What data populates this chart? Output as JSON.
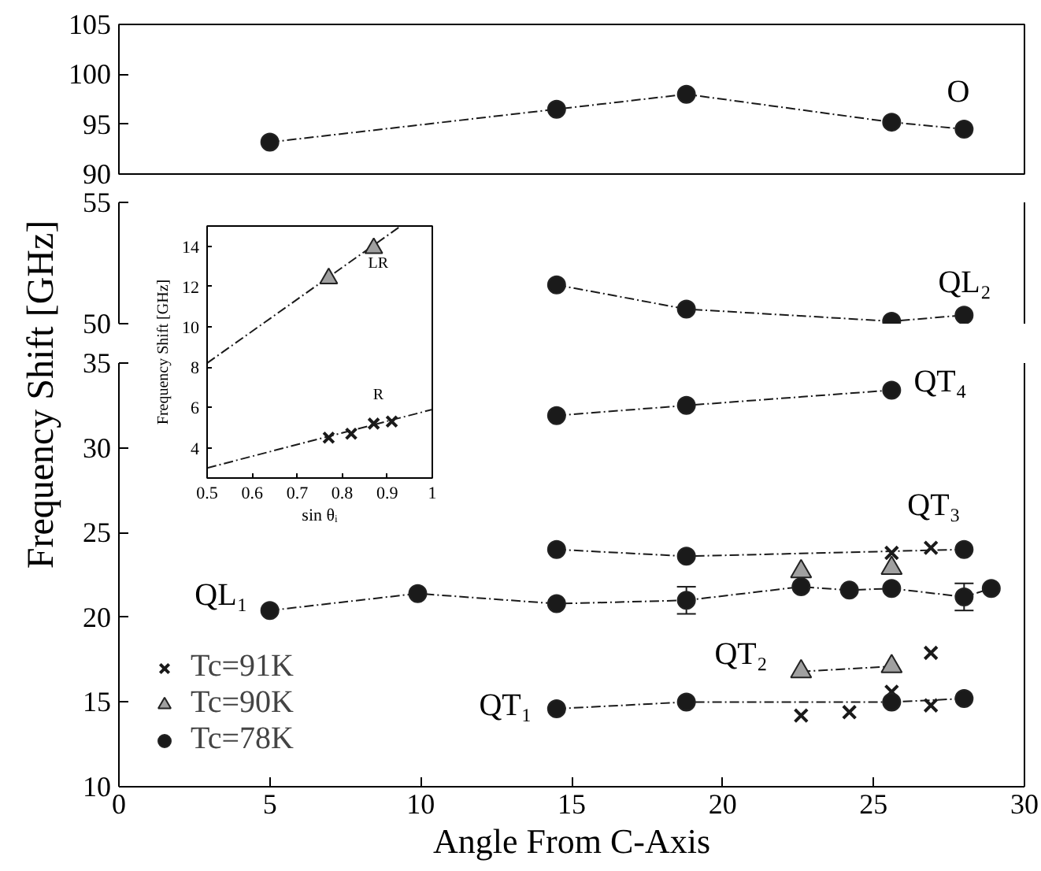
{
  "chart_data": [
    {
      "type": "line",
      "xlim": [
        0,
        30
      ],
      "ylim": [
        90,
        105
      ],
      "yticks": [
        90,
        95,
        100,
        105
      ],
      "tick_labels": "y",
      "series": [
        {
          "marker": "circle",
          "line_style": "dashed",
          "color": "#1a1a1a",
          "x": [
            5,
            14.5,
            18.8,
            25.6,
            28
          ],
          "values": [
            93.2,
            96.5,
            98.0,
            95.2,
            94.5
          ]
        }
      ],
      "annotations": [
        "O"
      ]
    },
    {
      "type": "line",
      "xlim": [
        0,
        30
      ],
      "ylim": [
        50,
        55
      ],
      "yticks": [
        50,
        55
      ],
      "tick_labels": "y",
      "series": [
        {
          "marker": "circle",
          "line_style": "dashed",
          "color": "#1a1a1a",
          "x": [
            14.5,
            18.8,
            25.6,
            28
          ],
          "values": [
            51.6,
            50.6,
            50.1,
            50.35
          ]
        }
      ],
      "annotations": [
        "QL₂"
      ]
    },
    {
      "type": "line",
      "xlim": [
        0,
        30
      ],
      "ylim": [
        10,
        35
      ],
      "xticks": [
        0,
        5,
        10,
        15,
        20,
        25,
        30
      ],
      "yticks": [
        10,
        15,
        20,
        25,
        30,
        35
      ],
      "xlabel": "Angle From C-Axis",
      "ylabel": "Frequency Shift [GHz]",
      "legend": "bottom left",
      "series": [
        {
          "marker": "none",
          "line_style": "dashed",
          "color": "#1a1a1a",
          "x": [
            14.5,
            18.8,
            25.6
          ],
          "values": [
            31.9,
            32.5,
            33.4
          ]
        },
        {
          "marker": "none",
          "line_style": "dashed",
          "color": "#1a1a1a",
          "x": [
            14.5,
            18.8,
            28
          ],
          "values": [
            24.0,
            23.6,
            24.0
          ]
        },
        {
          "marker": "none",
          "line_style": "dashed",
          "color": "#1a1a1a",
          "x": [
            5,
            9.9,
            14.5,
            18.8,
            22.6,
            24.2,
            25.6,
            28,
            28.9
          ],
          "values": [
            20.4,
            21.4,
            20.8,
            21.0,
            21.8,
            21.6,
            21.7,
            21.2,
            21.7
          ]
        },
        {
          "marker": "none",
          "line_style": "dashed",
          "color": "#1a1a1a",
          "x": [
            22.6,
            25.6
          ],
          "values": [
            16.8,
            17.1
          ]
        },
        {
          "marker": "none",
          "line_style": "dashed",
          "color": "#1a1a1a",
          "x": [
            14.5,
            18.8,
            25.6,
            28
          ],
          "values": [
            14.6,
            15.0,
            15.0,
            15.2
          ]
        },
        {
          "name": "Tc=91K",
          "type": "scatter",
          "marker": "cross",
          "color": "#1a1a1a",
          "x": [
            22.6,
            24.2,
            25.6,
            25.6,
            26.9,
            26.9,
            26.9
          ],
          "values": [
            14.2,
            14.4,
            15.6,
            23.8,
            14.8,
            17.9,
            24.1
          ]
        },
        {
          "name": "Tc=90K",
          "type": "scatter",
          "marker": "triangle",
          "color": "#a0a0a0",
          "x": [
            22.6,
            25.6,
            22.6,
            25.6
          ],
          "values": [
            16.8,
            17.1,
            22.7,
            22.9
          ]
        },
        {
          "name": "Tc=78K",
          "type": "scatter",
          "marker": "circle",
          "color": "#1a1a1a",
          "x": [
            14.5,
            18.8,
            25.6,
            14.5,
            18.8,
            28,
            5,
            9.9,
            14.5,
            18.8,
            22.6,
            24.2,
            25.6,
            28,
            28.9,
            14.5,
            18.8,
            25.6,
            28
          ],
          "values": [
            31.9,
            32.5,
            33.4,
            24.0,
            23.6,
            24.0,
            20.4,
            21.4,
            20.8,
            21.0,
            21.8,
            21.6,
            21.7,
            21.2,
            21.7,
            14.6,
            15.0,
            15.0,
            15.2
          ],
          "errors": [
            null,
            null,
            null,
            null,
            null,
            null,
            null,
            null,
            null,
            0.8,
            null,
            null,
            null,
            0.8,
            null,
            null,
            null,
            null,
            null
          ]
        }
      ],
      "annotations": [
        "QT₄",
        "QT₃",
        "QL₁",
        "QT₂",
        "QT₁"
      ]
    },
    {
      "type": "scatter",
      "xlim": [
        0.5,
        1
      ],
      "ylim": [
        2.5,
        15
      ],
      "xticks": [
        0.5,
        0.6,
        0.7,
        0.8,
        0.9,
        1
      ],
      "yticks": [
        4,
        6,
        8,
        10,
        12,
        14
      ],
      "xlabel": "sin θᵢ",
      "ylabel": "Frequency Shift [GHz]",
      "series": [
        {
          "type": "line",
          "marker": "none",
          "line_style": "dashed",
          "color": "#1a1a1a",
          "x": [
            0.5,
            0.93
          ],
          "values": [
            8.2,
            15
          ]
        },
        {
          "type": "line",
          "marker": "none",
          "line_style": "dashed",
          "color": "#1a1a1a",
          "x": [
            0.5,
            1
          ],
          "values": [
            3.0,
            5.9
          ]
        },
        {
          "marker": "triangle",
          "color": "#a0a0a0",
          "x": [
            0.77,
            0.87
          ],
          "values": [
            12.4,
            13.9
          ]
        },
        {
          "marker": "cross",
          "color": "#1a1a1a",
          "x": [
            0.77,
            0.82,
            0.87,
            0.91
          ],
          "values": [
            4.5,
            4.7,
            5.2,
            5.3
          ]
        }
      ],
      "annotations": [
        "LR",
        "R"
      ]
    }
  ]
}
